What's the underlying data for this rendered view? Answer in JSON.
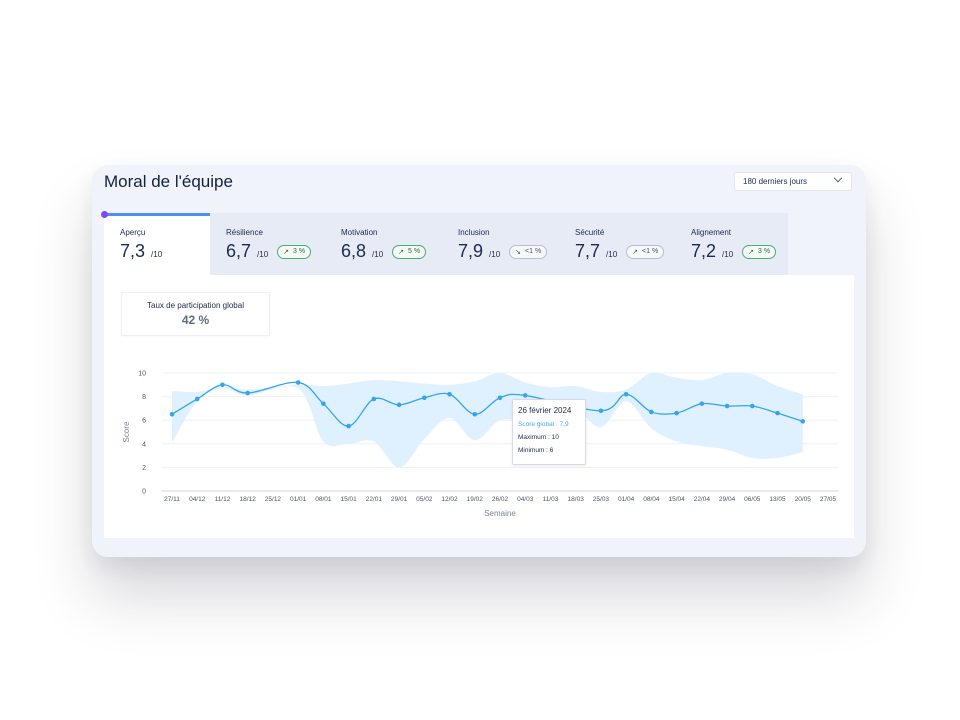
{
  "title": "Moral de l'équipe",
  "period_select": {
    "value": "180 derniers jours"
  },
  "tabs": [
    {
      "label": "Aperçu",
      "value": "7,3",
      "unit": "/10",
      "active": true
    },
    {
      "label": "Résilience",
      "value": "6,7",
      "unit": "/10",
      "trend": "3 %",
      "direction": "up"
    },
    {
      "label": "Motivation",
      "value": "6,8",
      "unit": "/10",
      "trend": "5 %",
      "direction": "up"
    },
    {
      "label": "Inclusion",
      "value": "7,9",
      "unit": "/10",
      "trend": "<1 %",
      "direction": "down"
    },
    {
      "label": "Sécurité",
      "value": "7,7",
      "unit": "/10",
      "trend": "<1 %",
      "direction": "up"
    },
    {
      "label": "Alignement",
      "value": "7,2",
      "unit": "/10",
      "trend": "3 %",
      "direction": "up"
    }
  ],
  "participation": {
    "label": "Taux de participation global",
    "value": "42 %"
  },
  "tooltip": {
    "date": "26 février 2024",
    "score": "Score global : 7,9",
    "max": "Maximum : 10",
    "min": "Minimum : 6"
  },
  "colors": {
    "line": "#35a4ec",
    "band": "#dcefff",
    "accent": "#4c8df7",
    "dot": "#7b4cf6"
  },
  "chart_data": {
    "type": "line",
    "xlabel": "Semaine",
    "ylabel": "Score",
    "ylim": [
      0,
      10
    ],
    "yticks": [
      0,
      2,
      4,
      6,
      8,
      10
    ],
    "grid": true,
    "categories": [
      "27/11",
      "04/12",
      "11/12",
      "18/12",
      "25/12",
      "01/01",
      "08/01",
      "15/01",
      "22/01",
      "29/01",
      "05/02",
      "12/02",
      "19/02",
      "26/02",
      "04/03",
      "11/03",
      "18/03",
      "25/03",
      "01/04",
      "08/04",
      "15/04",
      "22/04",
      "29/04",
      "06/05",
      "13/05",
      "20/05",
      "27/05"
    ],
    "series": [
      {
        "role": "score",
        "values": [
          6.5,
          7.8,
          9.0,
          8.3,
          null,
          9.2,
          7.4,
          5.5,
          7.8,
          7.3,
          7.9,
          8.2,
          6.5,
          7.9,
          8.1,
          null,
          null,
          6.8,
          8.2,
          6.7,
          6.6,
          7.4,
          7.2,
          7.2,
          6.6,
          5.9,
          null
        ]
      },
      {
        "role": "maximum",
        "values": [
          8.5,
          8.4,
          8.8,
          8.6,
          null,
          9.0,
          8.9,
          9.1,
          9.4,
          9.3,
          9.1,
          9.0,
          9.3,
          10.0,
          9.2,
          8.8,
          8.9,
          8.4,
          8.6,
          10.0,
          9.6,
          9.4,
          10.0,
          9.9,
          8.9,
          8.2,
          null
        ]
      },
      {
        "role": "minimum",
        "values": [
          4.1,
          7.6,
          8.7,
          8.1,
          null,
          8.7,
          4.2,
          4.0,
          4.2,
          2.0,
          4.4,
          6.2,
          4.3,
          6.0,
          5.8,
          5.6,
          6.8,
          5.4,
          7.6,
          5.3,
          4.2,
          3.8,
          3.5,
          2.8,
          2.8,
          3.3,
          null
        ]
      }
    ]
  }
}
